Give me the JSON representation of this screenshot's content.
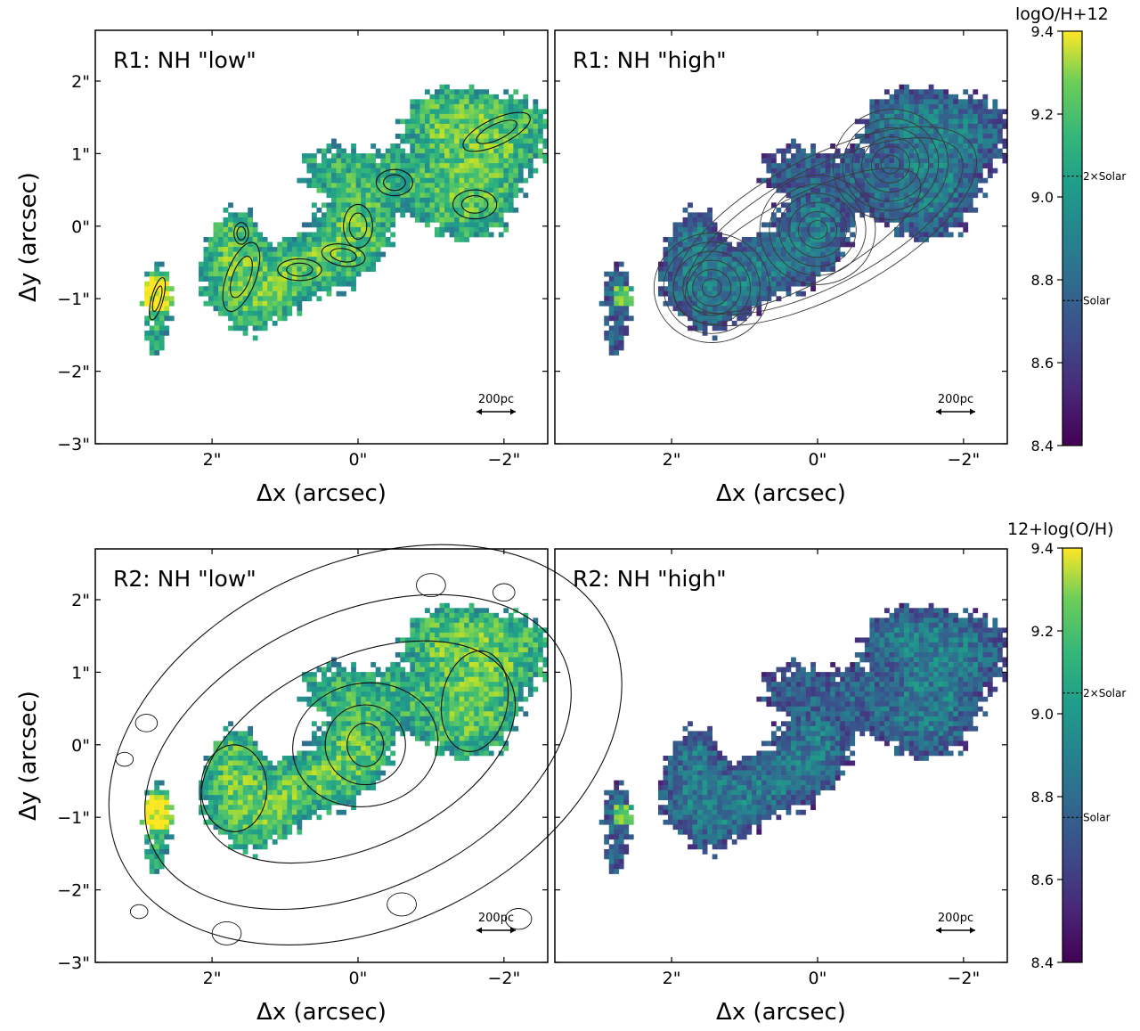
{
  "chart_data": [
    {
      "type": "heatmap",
      "title": "R1: NH \"low\"",
      "xlabel": "Δx (arcsec)",
      "ylabel": "Δy (arcsec)",
      "x_ticks": [
        "2\"",
        "0\"",
        "−2\""
      ],
      "x_tick_values": [
        2,
        0,
        -2
      ],
      "y_ticks": [
        "2\"",
        "1\"",
        "0\"",
        "−1\"",
        "−2\"",
        "−3\""
      ],
      "y_tick_values": [
        2,
        1,
        0,
        -1,
        -2,
        -3
      ],
      "xlim": [
        3.6,
        -2.6
      ],
      "ylim": [
        -3.0,
        2.7
      ],
      "x_inverted": true,
      "scale_bar_label": "200pc",
      "contours": "black, tracing high-metallicity emission"
    },
    {
      "type": "heatmap",
      "title": "R1: NH \"high\"",
      "xlabel": "Δx (arcsec)",
      "x_ticks": [
        "2\"",
        "0\"",
        "−2\""
      ],
      "x_tick_values": [
        2,
        0,
        -2
      ],
      "xlim": [
        3.6,
        -2.6
      ],
      "ylim": [
        -3.0,
        2.7
      ],
      "x_inverted": true,
      "scale_bar_label": "200pc",
      "contours": "gray, nested around three peaks"
    },
    {
      "type": "heatmap",
      "title": "R2: NH \"low\"",
      "xlabel": "Δx (arcsec)",
      "ylabel": "Δy (arcsec)",
      "x_ticks": [
        "2\"",
        "0\"",
        "−2\""
      ],
      "x_tick_values": [
        2,
        0,
        -2
      ],
      "y_ticks": [
        "2\"",
        "1\"",
        "0\"",
        "−1\"",
        "−2\"",
        "−3\""
      ],
      "y_tick_values": [
        2,
        1,
        0,
        -1,
        -2,
        -3
      ],
      "xlim": [
        3.6,
        -2.6
      ],
      "ylim": [
        -3.0,
        2.7
      ],
      "x_inverted": true,
      "scale_bar_label": "200pc",
      "contours": "black, extended"
    },
    {
      "type": "heatmap",
      "title": "R2: NH \"high\"",
      "xlabel": "Δx (arcsec)",
      "x_ticks": [
        "2\"",
        "0\"",
        "−2\""
      ],
      "x_tick_values": [
        2,
        0,
        -2
      ],
      "xlim": [
        3.6,
        -2.6
      ],
      "ylim": [
        -3.0,
        2.7
      ],
      "x_inverted": true,
      "scale_bar_label": "200pc",
      "contours": "none"
    }
  ],
  "colorbars": [
    {
      "title": "logO/H+12",
      "ticks": [
        "9.4",
        "9.2",
        "9.0",
        "8.8",
        "8.6",
        "8.4"
      ],
      "range": [
        8.4,
        9.4
      ],
      "colormap": "viridis",
      "markers": [
        {
          "label": "2×Solar",
          "value": 9.05
        },
        {
          "label": "Solar",
          "value": 8.75
        }
      ]
    },
    {
      "title": "12+log(O/H)",
      "ticks": [
        "9.4",
        "9.2",
        "9.0",
        "8.8",
        "8.6",
        "8.4"
      ],
      "range": [
        8.4,
        9.4
      ],
      "colormap": "viridis",
      "markers": [
        {
          "label": "2×Solar",
          "value": 9.05
        },
        {
          "label": "Solar",
          "value": 8.75
        }
      ]
    }
  ]
}
